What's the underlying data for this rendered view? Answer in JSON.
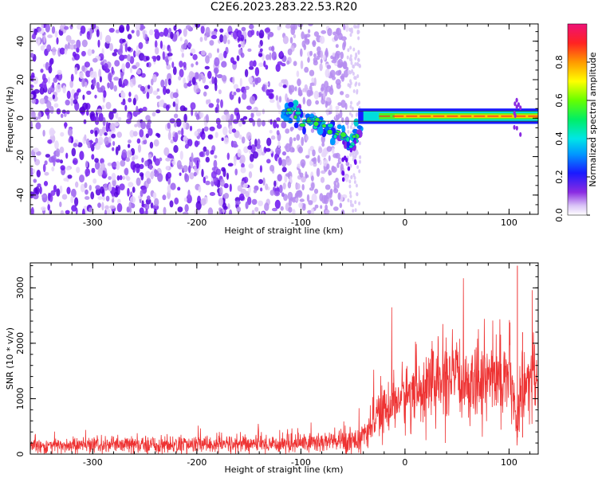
{
  "title": "C2E6.2023.283.22.53.R20",
  "chart_data": [
    {
      "type": "heatmap",
      "xlabel": "Height of straight line (km)",
      "ylabel": "Frequency (Hz)",
      "xlim": [
        -360,
        128
      ],
      "ylim": [
        -50,
        49
      ],
      "xticks": [
        -300,
        -200,
        -100,
        0,
        100
      ],
      "yticks": [
        -40,
        -20,
        0,
        20,
        40
      ],
      "colorbar": {
        "label": "Normalized spectral amplitude",
        "range": [
          0.0,
          1.0
        ],
        "ticks": [
          0.0,
          0.2,
          0.4,
          0.6,
          0.8
        ],
        "colormap": "rainbow (white-violet-blue-cyan-green-yellow-red-magenta)"
      },
      "features": {
        "noise_region_x": [
          -360,
          -45
        ],
        "signal_track": [
          {
            "x": -115,
            "y": 3
          },
          {
            "x": -100,
            "y": 1
          },
          {
            "x": -85,
            "y": -3
          },
          {
            "x": -70,
            "y": -6
          },
          {
            "x": -60,
            "y": -10
          },
          {
            "x": -52,
            "y": -14
          },
          {
            "x": -45,
            "y": -7
          },
          {
            "x": -30,
            "y": -2
          },
          {
            "x": -10,
            "y": 0
          },
          {
            "x": 20,
            "y": 1
          },
          {
            "x": 60,
            "y": 1
          },
          {
            "x": 100,
            "y": 1
          },
          {
            "x": 128,
            "y": 1
          }
        ],
        "carrier_frequency": 1
      }
    },
    {
      "type": "line",
      "series": [
        {
          "color": "#ee3333"
        }
      ],
      "xlabel": "Height of straight line (km)",
      "ylabel": "SNR (10 * v/v)",
      "xlim": [
        -360,
        128
      ],
      "ylim": [
        0,
        3450
      ],
      "xticks": [
        -300,
        -200,
        -100,
        0,
        100
      ],
      "yticks": [
        0,
        1000,
        2000,
        3000
      ],
      "envelope": [
        {
          "x": -360,
          "y": 150
        },
        {
          "x": -200,
          "y": 170
        },
        {
          "x": -120,
          "y": 190
        },
        {
          "x": -60,
          "y": 230
        },
        {
          "x": -40,
          "y": 300
        },
        {
          "x": -25,
          "y": 700
        },
        {
          "x": -10,
          "y": 950
        },
        {
          "x": 10,
          "y": 1150
        },
        {
          "x": 30,
          "y": 1300
        },
        {
          "x": 60,
          "y": 1350
        },
        {
          "x": 90,
          "y": 1400
        },
        {
          "x": 100,
          "y": 1450
        },
        {
          "x": 108,
          "y": 500
        },
        {
          "x": 112,
          "y": 1300
        },
        {
          "x": 128,
          "y": 1350
        }
      ],
      "peaks": [
        {
          "x": 108,
          "y": 3400
        },
        {
          "x": 113,
          "y": 2200
        }
      ]
    }
  ]
}
